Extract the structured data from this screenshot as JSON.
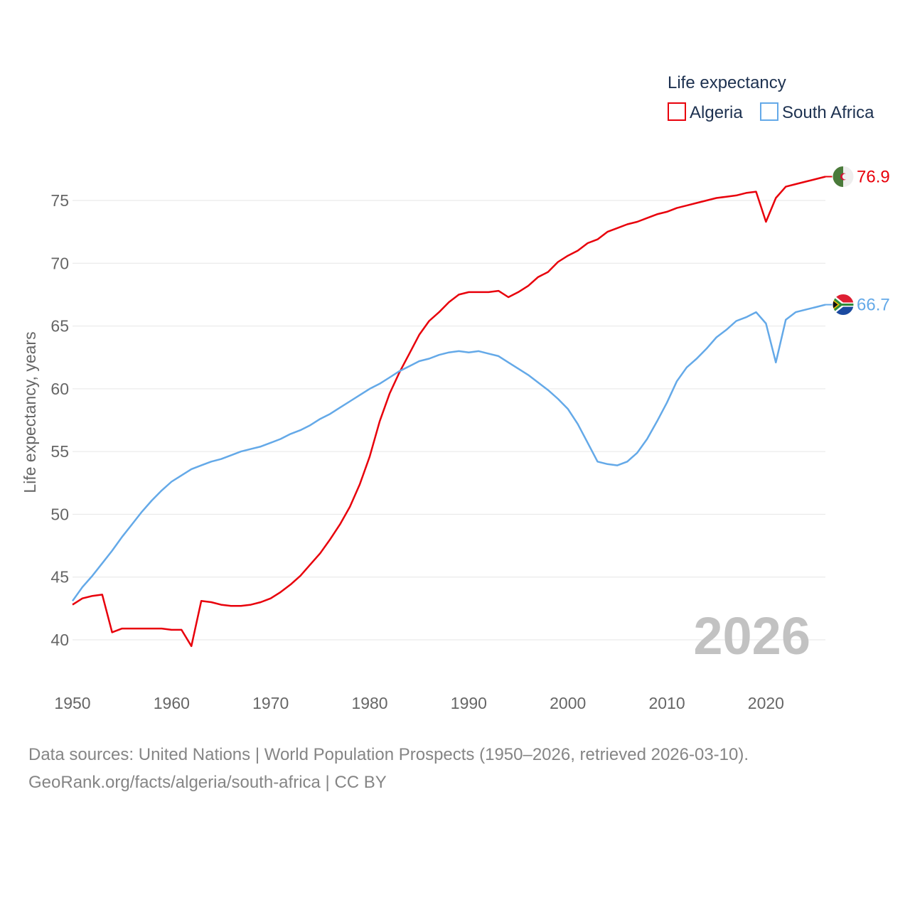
{
  "chart_data": {
    "type": "line",
    "year_label": "2026",
    "ylabel": "Life expectancy, years",
    "xlabel": "",
    "xlim": [
      1950,
      2026
    ],
    "ylim": [
      37.5,
      79.5
    ],
    "x_ticks": [
      1950,
      1960,
      1970,
      1980,
      1990,
      2000,
      2010,
      2020
    ],
    "y_ticks": [
      40,
      45,
      50,
      55,
      60,
      65,
      70,
      75
    ],
    "legend": {
      "title": "Life expectancy",
      "position": "top-right"
    },
    "x": [
      1950,
      1951,
      1952,
      1953,
      1954,
      1955,
      1956,
      1957,
      1958,
      1959,
      1960,
      1961,
      1962,
      1963,
      1964,
      1965,
      1966,
      1967,
      1968,
      1969,
      1970,
      1971,
      1972,
      1973,
      1974,
      1975,
      1976,
      1977,
      1978,
      1979,
      1980,
      1981,
      1982,
      1983,
      1984,
      1985,
      1986,
      1987,
      1988,
      1989,
      1990,
      1991,
      1992,
      1993,
      1994,
      1995,
      1996,
      1997,
      1998,
      1999,
      2000,
      2001,
      2002,
      2003,
      2004,
      2005,
      2006,
      2007,
      2008,
      2009,
      2010,
      2011,
      2012,
      2013,
      2014,
      2015,
      2016,
      2017,
      2018,
      2019,
      2020,
      2021,
      2022,
      2023,
      2024,
      2025,
      2026
    ],
    "series": [
      {
        "name": "Algeria",
        "color": "#e8000b",
        "end_label": "76.9",
        "flag": "algeria-flag-icon",
        "values": [
          42.8,
          43.3,
          43.5,
          43.6,
          40.6,
          40.9,
          40.9,
          40.9,
          40.9,
          40.9,
          40.8,
          40.8,
          39.5,
          43.1,
          43.0,
          42.8,
          42.7,
          42.7,
          42.8,
          43.0,
          43.3,
          43.8,
          44.4,
          45.1,
          46.0,
          46.9,
          48.0,
          49.2,
          50.6,
          52.4,
          54.6,
          57.4,
          59.6,
          61.3,
          62.8,
          64.3,
          65.4,
          66.1,
          66.9,
          67.5,
          67.7,
          67.7,
          67.7,
          67.8,
          67.3,
          67.7,
          68.2,
          68.9,
          69.3,
          70.1,
          70.6,
          71.0,
          71.6,
          71.9,
          72.5,
          72.8,
          73.1,
          73.3,
          73.6,
          73.9,
          74.1,
          74.4,
          74.6,
          74.8,
          75.0,
          75.2,
          75.3,
          75.4,
          75.6,
          75.7,
          73.3,
          75.2,
          76.1,
          76.3,
          76.5,
          76.7,
          76.9
        ]
      },
      {
        "name": "South Africa",
        "color": "#64a9e8",
        "end_label": "66.7",
        "flag": "south-africa-flag-icon",
        "values": [
          43.1,
          44.2,
          45.1,
          46.1,
          47.1,
          48.2,
          49.2,
          50.2,
          51.1,
          51.9,
          52.6,
          53.1,
          53.6,
          53.9,
          54.2,
          54.4,
          54.7,
          55.0,
          55.2,
          55.4,
          55.7,
          56.0,
          56.4,
          56.7,
          57.1,
          57.6,
          58.0,
          58.5,
          59.0,
          59.5,
          60.0,
          60.4,
          60.9,
          61.4,
          61.8,
          62.2,
          62.4,
          62.7,
          62.9,
          63.0,
          62.9,
          63.0,
          62.8,
          62.6,
          62.1,
          61.6,
          61.1,
          60.5,
          59.9,
          59.2,
          58.4,
          57.2,
          55.7,
          54.2,
          54.0,
          53.9,
          54.2,
          54.9,
          56.0,
          57.4,
          58.9,
          60.6,
          61.7,
          62.4,
          63.2,
          64.1,
          64.7,
          65.4,
          65.7,
          66.1,
          65.2,
          62.1,
          65.5,
          66.1,
          66.3,
          66.5,
          66.7
        ]
      }
    ]
  },
  "footer": {
    "line1": "Data sources: United Nations | World Population Prospects (1950–2026, retrieved 2026-03-10).",
    "line2": "GeoRank.org/facts/algeria/south-africa | CC BY"
  }
}
